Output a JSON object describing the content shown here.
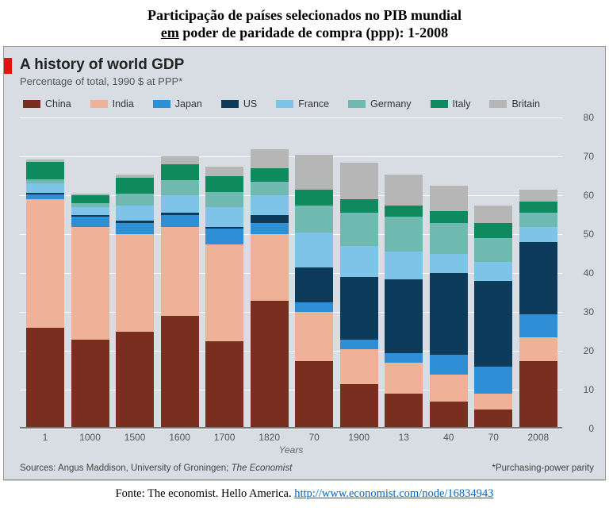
{
  "outer_title_line1": "Participação de países selecionados no PIB mundial",
  "outer_title_line2_pre": "em",
  "outer_title_line2_post": " poder de paridade de compra (ppp): 1-2008",
  "chart": {
    "type": "stacked-bar",
    "title": "A history of world GDP",
    "subtitle": "Percentage of total, 1990 $  at PPP*",
    "background_color": "#d7dde3",
    "red_tab_color": "#e3120b",
    "grid_color": "#ffffff",
    "baseline_color": "#777777",
    "xaxis_title": "Years",
    "ylim": [
      0,
      80
    ],
    "ytick_step": 10,
    "categories": [
      "1",
      "1000",
      "1500",
      "1600",
      "1700",
      "1820",
      "70",
      "1900",
      "13",
      "40",
      "70",
      "2008"
    ],
    "series": [
      {
        "name": "China",
        "color": "#7a2e1f"
      },
      {
        "name": "India",
        "color": "#f0b199"
      },
      {
        "name": "Japan",
        "color": "#2f8fd6"
      },
      {
        "name": "US",
        "color": "#0d3b5c"
      },
      {
        "name": "France",
        "color": "#7ec4e8"
      },
      {
        "name": "Germany",
        "color": "#6fb9b0"
      },
      {
        "name": "Italy",
        "color": "#0f8a5f"
      },
      {
        "name": "Britain",
        "color": "#b6b6b6"
      }
    ],
    "stacks": [
      [
        26,
        33,
        1.2,
        0.5,
        2.5,
        1,
        4.5,
        0.5
      ],
      [
        23,
        29,
        2.5,
        0.5,
        2,
        1,
        2,
        0.5
      ],
      [
        25,
        25,
        3,
        0.5,
        4,
        3,
        4,
        1
      ],
      [
        29,
        23,
        3,
        0.5,
        4.5,
        4,
        4,
        2
      ],
      [
        22.5,
        25,
        4,
        0.5,
        5,
        4,
        4,
        2.5
      ],
      [
        33,
        17,
        3,
        2,
        5,
        3.5,
        3.5,
        5
      ],
      [
        17.5,
        12.5,
        2.5,
        9,
        9,
        7,
        4,
        9
      ],
      [
        11.5,
        9,
        2.5,
        16,
        8,
        8.5,
        3.5,
        9.5
      ],
      [
        9,
        8,
        2.5,
        19,
        7,
        9,
        3,
        8
      ],
      [
        7,
        7,
        5,
        21,
        5,
        8,
        3,
        6.5
      ],
      [
        5,
        4,
        7,
        22,
        5,
        6,
        4,
        4.5
      ],
      [
        17.5,
        6,
        6,
        18.5,
        4,
        3.5,
        3,
        3
      ]
    ],
    "source_text_pre": "Sources: Angus Maddison, University of Groningen; ",
    "source_text_em": "The Economist",
    "footnote": "*Purchasing-power parity"
  },
  "outer_footer_text": "Fonte: The economist. Hello America. ",
  "outer_footer_url": "http://www.economist.com/node/16834943"
}
